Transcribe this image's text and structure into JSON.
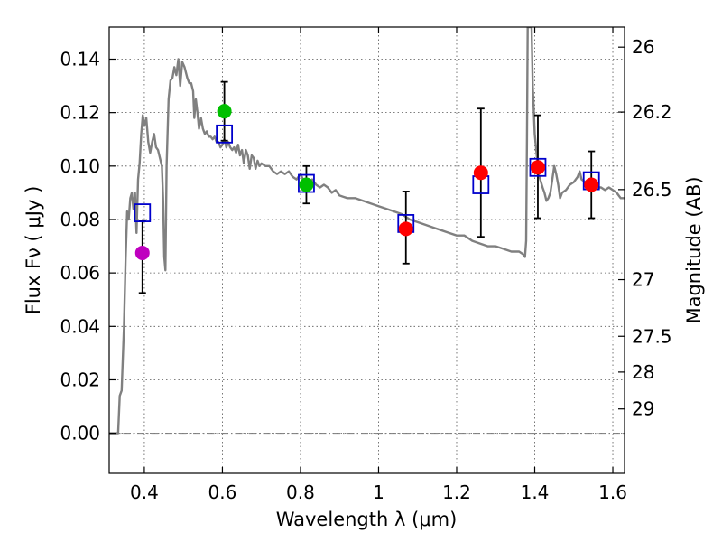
{
  "chart_data": {
    "type": "scatter",
    "xlabel": "Wavelength  λ (μm)",
    "ylabel": "Flux  Fν  ( μJy )",
    "y2label": "Magnitude (AB)",
    "xlim": [
      0.31,
      1.63
    ],
    "ylim": [
      -0.015,
      0.152
    ],
    "grid": true,
    "x_ticks": [
      {
        "value": 0.4,
        "label": "0.4"
      },
      {
        "value": 0.6,
        "label": "0.6"
      },
      {
        "value": 0.8,
        "label": "0.8"
      },
      {
        "value": 1.0,
        "label": "1"
      },
      {
        "value": 1.2,
        "label": "1.2"
      },
      {
        "value": 1.4,
        "label": "1.4"
      },
      {
        "value": 1.6,
        "label": "1.6"
      }
    ],
    "y_ticks": [
      {
        "value": 0.0,
        "label": "0.00"
      },
      {
        "value": 0.02,
        "label": "0.02"
      },
      {
        "value": 0.04,
        "label": "0.04"
      },
      {
        "value": 0.06,
        "label": "0.06"
      },
      {
        "value": 0.08,
        "label": "0.08"
      },
      {
        "value": 0.1,
        "label": "0.10"
      },
      {
        "value": 0.12,
        "label": "0.12"
      },
      {
        "value": 0.14,
        "label": "0.14"
      }
    ],
    "mag_ticks": [
      {
        "flux": 0.1445,
        "label": "26"
      },
      {
        "flux": 0.1202,
        "label": "26.2"
      },
      {
        "flux": 0.0912,
        "label": "26.5"
      },
      {
        "flux": 0.0575,
        "label": "27"
      },
      {
        "flux": 0.0363,
        "label": "27.5"
      },
      {
        "flux": 0.0229,
        "label": "28"
      },
      {
        "flux": 0.0091,
        "label": "29"
      }
    ],
    "model_color": "#808080",
    "model_sed": [
      [
        0.31,
        0.0
      ],
      [
        0.333,
        0.0
      ],
      [
        0.337,
        0.014
      ],
      [
        0.342,
        0.016
      ],
      [
        0.348,
        0.04
      ],
      [
        0.352,
        0.065
      ],
      [
        0.356,
        0.083
      ],
      [
        0.36,
        0.08
      ],
      [
        0.364,
        0.088
      ],
      [
        0.368,
        0.09
      ],
      [
        0.372,
        0.084
      ],
      [
        0.376,
        0.09
      ],
      [
        0.38,
        0.075
      ],
      [
        0.384,
        0.095
      ],
      [
        0.388,
        0.101
      ],
      [
        0.392,
        0.112
      ],
      [
        0.396,
        0.119
      ],
      [
        0.4,
        0.115
      ],
      [
        0.405,
        0.118
      ],
      [
        0.41,
        0.109
      ],
      [
        0.415,
        0.105
      ],
      [
        0.42,
        0.109
      ],
      [
        0.425,
        0.112
      ],
      [
        0.43,
        0.107
      ],
      [
        0.435,
        0.106
      ],
      [
        0.44,
        0.103
      ],
      [
        0.445,
        0.1
      ],
      [
        0.448,
        0.088
      ],
      [
        0.451,
        0.066
      ],
      [
        0.454,
        0.061
      ],
      [
        0.457,
        0.1
      ],
      [
        0.462,
        0.125
      ],
      [
        0.467,
        0.132
      ],
      [
        0.472,
        0.133
      ],
      [
        0.477,
        0.137
      ],
      [
        0.482,
        0.134
      ],
      [
        0.487,
        0.14
      ],
      [
        0.492,
        0.13
      ],
      [
        0.497,
        0.139
      ],
      [
        0.503,
        0.137
      ],
      [
        0.51,
        0.133
      ],
      [
        0.515,
        0.131
      ],
      [
        0.52,
        0.131
      ],
      [
        0.525,
        0.128
      ],
      [
        0.528,
        0.118
      ],
      [
        0.532,
        0.125
      ],
      [
        0.536,
        0.12
      ],
      [
        0.54,
        0.114
      ],
      [
        0.545,
        0.118
      ],
      [
        0.55,
        0.114
      ],
      [
        0.555,
        0.112
      ],
      [
        0.56,
        0.113
      ],
      [
        0.565,
        0.111
      ],
      [
        0.57,
        0.111
      ],
      [
        0.575,
        0.11
      ],
      [
        0.58,
        0.111
      ],
      [
        0.585,
        0.109
      ],
      [
        0.59,
        0.109
      ],
      [
        0.595,
        0.107
      ],
      [
        0.6,
        0.108
      ],
      [
        0.605,
        0.11
      ],
      [
        0.61,
        0.107
      ],
      [
        0.615,
        0.109
      ],
      [
        0.62,
        0.107
      ],
      [
        0.625,
        0.106
      ],
      [
        0.63,
        0.107
      ],
      [
        0.635,
        0.105
      ],
      [
        0.64,
        0.108
      ],
      [
        0.645,
        0.104
      ],
      [
        0.65,
        0.106
      ],
      [
        0.655,
        0.101
      ],
      [
        0.66,
        0.106
      ],
      [
        0.665,
        0.104
      ],
      [
        0.67,
        0.099
      ],
      [
        0.675,
        0.104
      ],
      [
        0.68,
        0.103
      ],
      [
        0.685,
        0.099
      ],
      [
        0.69,
        0.102
      ],
      [
        0.695,
        0.1
      ],
      [
        0.7,
        0.101
      ],
      [
        0.71,
        0.1
      ],
      [
        0.72,
        0.1
      ],
      [
        0.73,
        0.098
      ],
      [
        0.74,
        0.097
      ],
      [
        0.75,
        0.098
      ],
      [
        0.76,
        0.097
      ],
      [
        0.77,
        0.098
      ],
      [
        0.78,
        0.096
      ],
      [
        0.79,
        0.095
      ],
      [
        0.8,
        0.097
      ],
      [
        0.81,
        0.094
      ],
      [
        0.82,
        0.094
      ],
      [
        0.83,
        0.095
      ],
      [
        0.84,
        0.093
      ],
      [
        0.85,
        0.092
      ],
      [
        0.86,
        0.093
      ],
      [
        0.87,
        0.092
      ],
      [
        0.88,
        0.09
      ],
      [
        0.89,
        0.091
      ],
      [
        0.9,
        0.089
      ],
      [
        0.92,
        0.088
      ],
      [
        0.94,
        0.088
      ],
      [
        0.96,
        0.087
      ],
      [
        0.98,
        0.086
      ],
      [
        1.0,
        0.085
      ],
      [
        1.02,
        0.084
      ],
      [
        1.04,
        0.083
      ],
      [
        1.06,
        0.082
      ],
      [
        1.08,
        0.08
      ],
      [
        1.1,
        0.079
      ],
      [
        1.12,
        0.078
      ],
      [
        1.14,
        0.077
      ],
      [
        1.16,
        0.076
      ],
      [
        1.18,
        0.075
      ],
      [
        1.2,
        0.074
      ],
      [
        1.22,
        0.074
      ],
      [
        1.24,
        0.072
      ],
      [
        1.26,
        0.071
      ],
      [
        1.28,
        0.07
      ],
      [
        1.3,
        0.07
      ],
      [
        1.32,
        0.069
      ],
      [
        1.34,
        0.068
      ],
      [
        1.36,
        0.068
      ],
      [
        1.37,
        0.067
      ],
      [
        1.375,
        0.066
      ],
      [
        1.378,
        0.072
      ],
      [
        1.38,
        0.11
      ],
      [
        1.382,
        0.152
      ],
      [
        1.392,
        0.152
      ],
      [
        1.395,
        0.13
      ],
      [
        1.4,
        0.112
      ],
      [
        1.405,
        0.104
      ],
      [
        1.41,
        0.097
      ],
      [
        1.42,
        0.092
      ],
      [
        1.425,
        0.09
      ],
      [
        1.43,
        0.087
      ],
      [
        1.435,
        0.088
      ],
      [
        1.44,
        0.09
      ],
      [
        1.445,
        0.095
      ],
      [
        1.45,
        0.1
      ],
      [
        1.455,
        0.097
      ],
      [
        1.46,
        0.093
      ],
      [
        1.465,
        0.088
      ],
      [
        1.47,
        0.09
      ],
      [
        1.48,
        0.091
      ],
      [
        1.49,
        0.093
      ],
      [
        1.5,
        0.094
      ],
      [
        1.51,
        0.096
      ],
      [
        1.515,
        0.098
      ],
      [
        1.52,
        0.095
      ],
      [
        1.53,
        0.094
      ],
      [
        1.54,
        0.093
      ],
      [
        1.55,
        0.093
      ],
      [
        1.56,
        0.092
      ],
      [
        1.57,
        0.092
      ],
      [
        1.58,
        0.091
      ],
      [
        1.59,
        0.092
      ],
      [
        1.6,
        0.091
      ],
      [
        1.61,
        0.09
      ],
      [
        1.62,
        0.088
      ],
      [
        1.63,
        0.088
      ]
    ],
    "observed": [
      {
        "x": 0.395,
        "y": 0.0675,
        "yerr_lo": 0.0525,
        "yerr_hi": 0.0795,
        "color": "#bf00bf"
      },
      {
        "x": 0.605,
        "y": 0.1205,
        "yerr_lo": 0.1095,
        "yerr_hi": 0.1315,
        "color": "#00bf00"
      },
      {
        "x": 0.815,
        "y": 0.093,
        "yerr_lo": 0.086,
        "yerr_hi": 0.1,
        "color": "#00bf00"
      },
      {
        "x": 1.07,
        "y": 0.0765,
        "yerr_lo": 0.0635,
        "yerr_hi": 0.0905,
        "color": "#ff0000"
      },
      {
        "x": 1.262,
        "y": 0.0975,
        "yerr_lo": 0.0735,
        "yerr_hi": 0.1215,
        "color": "#ff0000"
      },
      {
        "x": 1.408,
        "y": 0.0995,
        "yerr_lo": 0.0805,
        "yerr_hi": 0.119,
        "color": "#ff0000"
      },
      {
        "x": 1.545,
        "y": 0.093,
        "yerr_lo": 0.0805,
        "yerr_hi": 0.1055,
        "color": "#ff0000"
      }
    ],
    "model_photometry": [
      {
        "x": 0.395,
        "y": 0.0825
      },
      {
        "x": 0.605,
        "y": 0.112
      },
      {
        "x": 0.815,
        "y": 0.0935
      },
      {
        "x": 1.07,
        "y": 0.0785
      },
      {
        "x": 1.262,
        "y": 0.093
      },
      {
        "x": 1.408,
        "y": 0.0995
      },
      {
        "x": 1.545,
        "y": 0.0945
      }
    ],
    "model_photometry_color": "#0000cc",
    "errorbar_color": "#000000"
  }
}
